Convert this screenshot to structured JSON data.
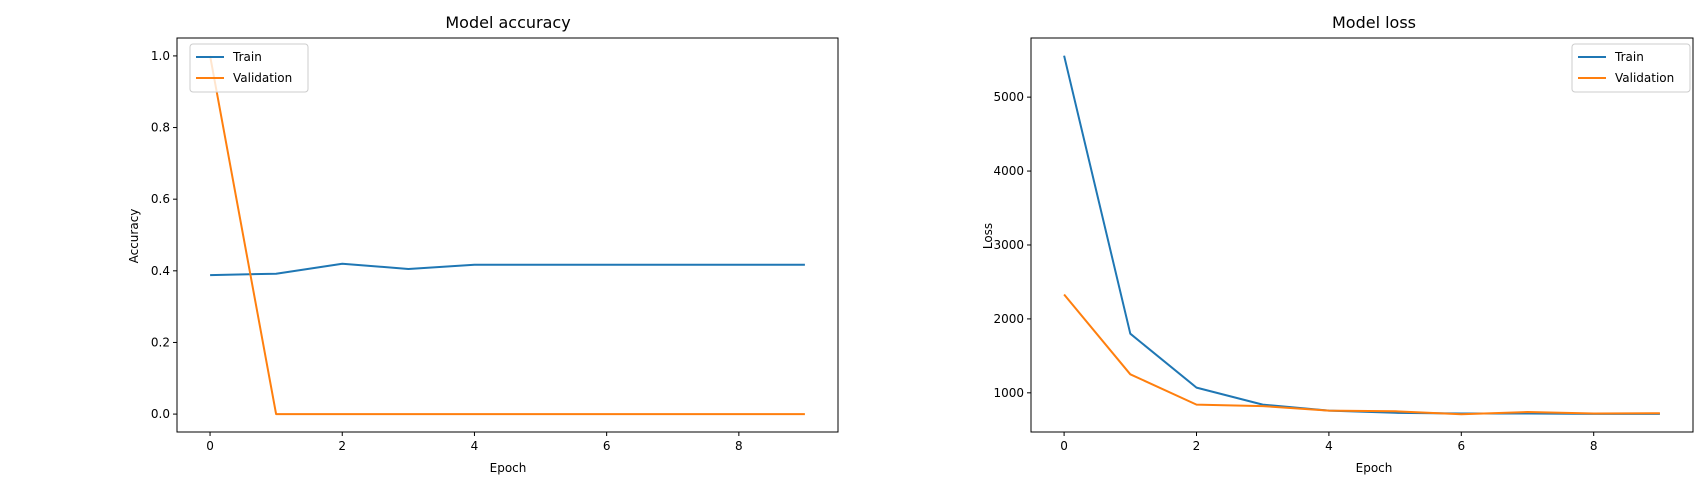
{
  "colors": {
    "train": "#1f77b4",
    "validation": "#ff7f0e"
  },
  "chart_data": [
    {
      "type": "line",
      "title": "Model accuracy",
      "xlabel": "Epoch",
      "ylabel": "Accuracy",
      "xlim": [
        -0.5,
        9.5
      ],
      "ylim": [
        -0.05,
        1.05
      ],
      "xticks": [
        0,
        2,
        4,
        6,
        8
      ],
      "xtick_labels": [
        "0",
        "2",
        "4",
        "6",
        "8"
      ],
      "yticks": [
        0.0,
        0.2,
        0.4,
        0.6,
        0.8,
        1.0
      ],
      "ytick_labels": [
        "0.0",
        "0.2",
        "0.4",
        "0.6",
        "0.8",
        "1.0"
      ],
      "legend": "upper left",
      "x": [
        0,
        1,
        2,
        3,
        4,
        5,
        6,
        7,
        8,
        9
      ],
      "series": [
        {
          "name": "Train",
          "values": [
            0.388,
            0.392,
            0.42,
            0.405,
            0.417,
            0.417,
            0.417,
            0.417,
            0.417,
            0.417
          ]
        },
        {
          "name": "Validation",
          "values": [
            1.0,
            0.0,
            0.0,
            0.0,
            0.0,
            0.0,
            0.0,
            0.0,
            0.0,
            0.0
          ]
        }
      ]
    },
    {
      "type": "line",
      "title": "Model loss",
      "xlabel": "Epoch",
      "ylabel": "Loss",
      "xlim": [
        -0.5,
        9.5
      ],
      "ylim": [
        470,
        5800
      ],
      "xticks": [
        0,
        2,
        4,
        6,
        8
      ],
      "xtick_labels": [
        "0",
        "2",
        "4",
        "6",
        "8"
      ],
      "yticks": [
        1000,
        2000,
        3000,
        4000,
        5000
      ],
      "ytick_labels": [
        "1000",
        "2000",
        "3000",
        "4000",
        "5000"
      ],
      "legend": "upper right",
      "x": [
        0,
        1,
        2,
        3,
        4,
        5,
        6,
        7,
        8,
        9
      ],
      "series": [
        {
          "name": "Train",
          "values": [
            5560,
            1800,
            1070,
            840,
            760,
            730,
            720,
            720,
            715,
            715
          ]
        },
        {
          "name": "Validation",
          "values": [
            2330,
            1250,
            840,
            820,
            760,
            750,
            710,
            740,
            720,
            725
          ]
        }
      ]
    }
  ]
}
